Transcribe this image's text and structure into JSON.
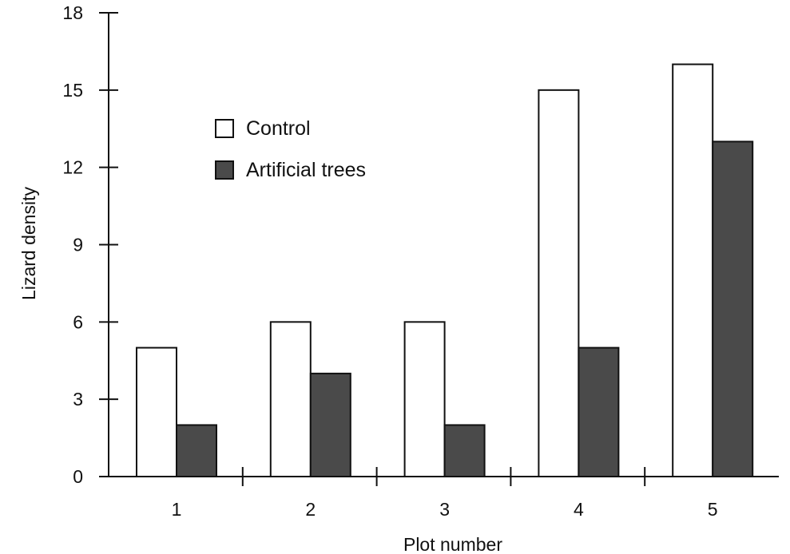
{
  "chart_data": {
    "type": "bar",
    "title": "",
    "xlabel": "Plot number",
    "ylabel": "Lizard density",
    "categories": [
      "1",
      "2",
      "3",
      "4",
      "5"
    ],
    "series": [
      {
        "name": "Control",
        "values": [
          5,
          6,
          6,
          15,
          16
        ],
        "color": "#ffffff"
      },
      {
        "name": "Artificial trees",
        "values": [
          2,
          4,
          2,
          5,
          13
        ],
        "color": "#4a4a4a"
      }
    ],
    "ylim": [
      0,
      18
    ],
    "yticks": [
      "0",
      "3",
      "6",
      "9",
      "12",
      "15",
      "18"
    ],
    "grid": false,
    "legend_position": "top-left"
  }
}
